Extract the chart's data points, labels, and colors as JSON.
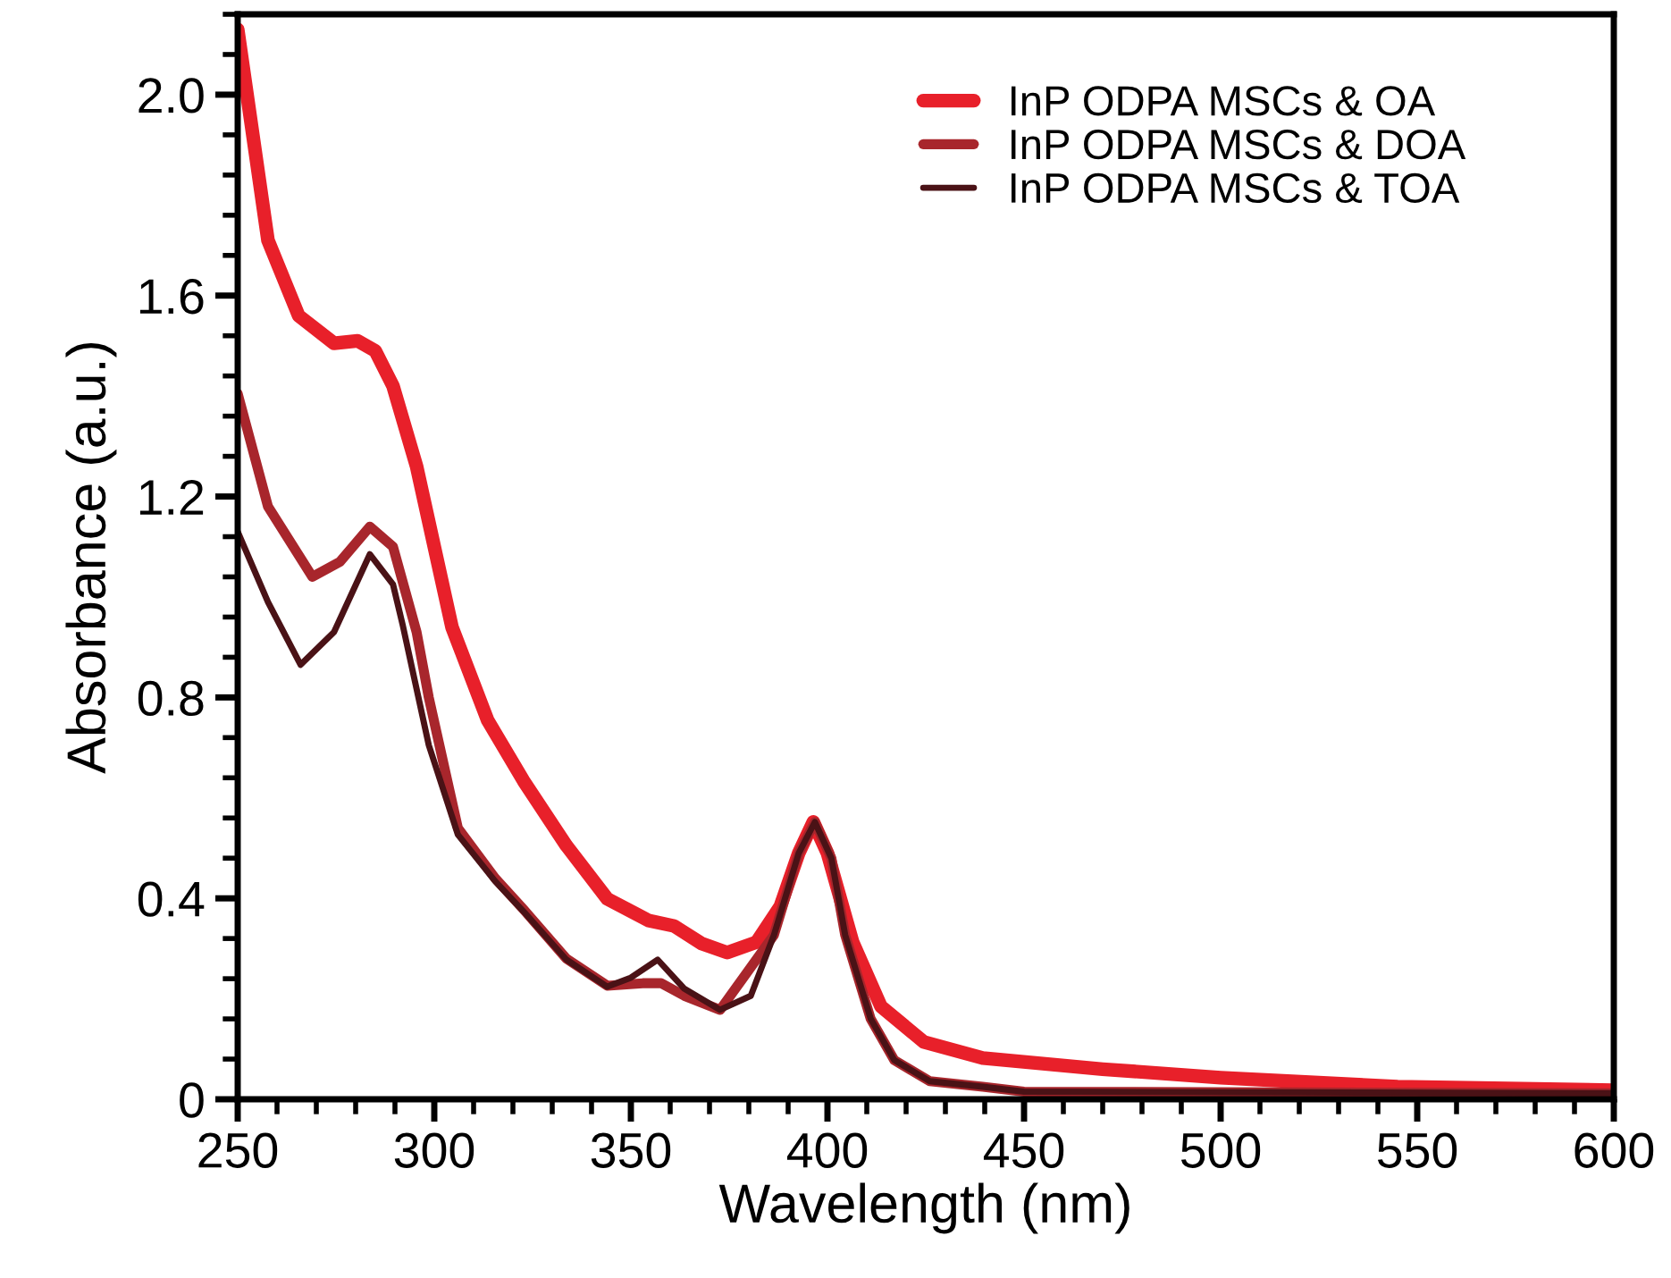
{
  "chart_data": {
    "type": "line",
    "xlabel": "Wavelength (nm)",
    "ylabel": "Absorbance (a.u.)",
    "xlim": [
      250,
      600
    ],
    "xticks": [
      250,
      300,
      350,
      400,
      450,
      500,
      550,
      600
    ],
    "ylim": [
      0,
      2.16
    ],
    "yticks": [
      0,
      0.4,
      0.8,
      1.2,
      1.6,
      {
        "value": 2.0,
        "label": "2.0"
      }
    ],
    "grid": false,
    "legend": "top right",
    "marker": "none",
    "line_style": "solid",
    "series": [
      {
        "name": "InP ODPA MSCs & OA",
        "color": "#e8202a",
        "x": [
          250,
          257.7,
          265.5,
          274.5,
          280.5,
          285,
          289.5,
          295.5,
          304.5,
          313.6,
          322.7,
          333.6,
          344,
          354.5,
          361,
          368,
          374.5,
          382,
          388,
          392.7,
          396.4,
          400,
          406.4,
          413.6,
          424.5,
          439.5,
          470,
          500,
          545,
          600
        ],
        "values": [
          2.13,
          1.71,
          1.56,
          1.505,
          1.51,
          1.49,
          1.42,
          1.26,
          0.94,
          0.754,
          0.634,
          0.505,
          0.399,
          0.356,
          0.345,
          0.31,
          0.292,
          0.313,
          0.384,
          0.49,
          0.552,
          0.49,
          0.313,
          0.185,
          0.114,
          0.082,
          0.06,
          0.043,
          0.025,
          0.018
        ]
      },
      {
        "name": "InP ODPA MSCs & DOA",
        "color": "#a8262c",
        "x": [
          250,
          257.7,
          269,
          276,
          283.6,
          289.5,
          295.5,
          298.6,
          306,
          315.5,
          322.7,
          333.6,
          344,
          353,
          357.7,
          363.6,
          372.7,
          386.4,
          392.7,
          396.8,
          401,
          404.5,
          411,
          417,
          426,
          439.5,
          450,
          600
        ],
        "values": [
          1.405,
          1.18,
          1.04,
          1.07,
          1.14,
          1.1,
          0.93,
          0.8,
          0.54,
          0.44,
          0.378,
          0.28,
          0.226,
          0.231,
          0.231,
          0.206,
          0.178,
          0.327,
          0.49,
          0.552,
          0.48,
          0.327,
          0.16,
          0.078,
          0.036,
          0.025,
          0.015,
          0.012
        ]
      },
      {
        "name": "InP ODPA MSCs & TOA",
        "color": "#4a1216",
        "x": [
          250,
          257.7,
          266,
          274.5,
          283.6,
          289.5,
          292,
          298.6,
          306,
          315.5,
          322.7,
          333.6,
          344,
          350,
          356.8,
          363.6,
          372.7,
          380.5,
          386.4,
          392.7,
          396.8,
          401,
          404.5,
          411,
          417,
          426,
          439.5,
          450,
          600
        ],
        "values": [
          1.13,
          0.99,
          0.865,
          0.93,
          1.085,
          1.025,
          0.943,
          0.705,
          0.527,
          0.434,
          0.374,
          0.278,
          0.224,
          0.242,
          0.278,
          0.22,
          0.178,
          0.206,
          0.327,
          0.49,
          0.552,
          0.48,
          0.327,
          0.16,
          0.078,
          0.036,
          0.025,
          0.015,
          0.012
        ]
      }
    ]
  }
}
